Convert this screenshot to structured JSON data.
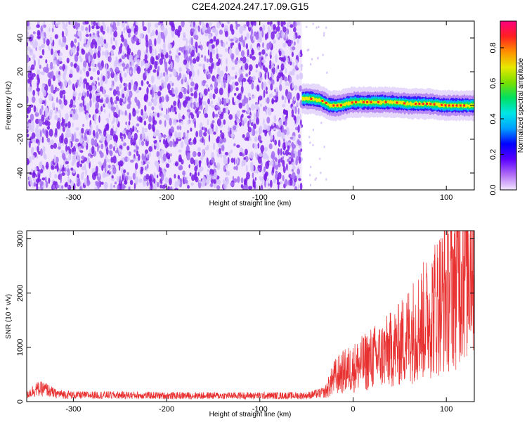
{
  "title": "C2E4.2024.247.17.09.G15",
  "colors": {
    "snr_line": "#e83030",
    "noise_dark": "#7a1fe6",
    "noise_light": "#d7c4fb",
    "frame": "#000000"
  },
  "chart_data": [
    {
      "type": "heatmap",
      "xlabel": "Height of straight line (km)",
      "ylabel": "Frequency (Hz)",
      "xlim": [
        -350,
        130
      ],
      "ylim": [
        -50,
        50
      ],
      "xticks": [
        -300,
        -200,
        -100,
        0,
        100
      ],
      "yticks": [
        -40,
        -20,
        0,
        20,
        40
      ],
      "noise_region_x": [
        -350,
        -55
      ],
      "signal_track": {
        "x": [
          -55,
          -45,
          -35,
          -25,
          -15,
          0,
          20,
          40,
          60,
          80,
          100,
          120,
          130
        ],
        "y": [
          4,
          4,
          3,
          0,
          0,
          2,
          2,
          2,
          1,
          1,
          0,
          0,
          0
        ]
      },
      "colorbar": {
        "label": "Normalized spectral amplitude",
        "ticks": [
          0.0,
          0.2,
          0.4,
          0.6,
          0.8
        ],
        "range": [
          0,
          0.95
        ],
        "colorscale": [
          "#f3e6ff",
          "#b06cf5",
          "#5a00ff",
          "#0000ff",
          "#00a0ff",
          "#00e6e6",
          "#00e060",
          "#7ae000",
          "#e8e800",
          "#ff9000",
          "#ff2020",
          "#ff0080"
        ]
      }
    },
    {
      "type": "line",
      "xlabel": "Height of straight line (km)",
      "ylabel": "SNR (10 * v/v)",
      "xlim": [
        -350,
        130
      ],
      "ylim": [
        0,
        3150
      ],
      "xticks": [
        -300,
        -200,
        -100,
        0,
        100
      ],
      "yticks": [
        0,
        1000,
        2000,
        3000
      ],
      "series": [
        {
          "x": [
            -350,
            -340,
            -330,
            -320,
            -300,
            -250,
            -200,
            -150,
            -100,
            -50,
            -30,
            -20,
            -10,
            0,
            10,
            20,
            30,
            40,
            50,
            60,
            70,
            80,
            90,
            100,
            110,
            120,
            130
          ],
          "y": [
            130,
            230,
            230,
            150,
            120,
            120,
            110,
            110,
            110,
            110,
            170,
            450,
            550,
            620,
            700,
            800,
            850,
            950,
            1050,
            1250,
            1400,
            1550,
            1800,
            2000,
            2300,
            2650,
            3000
          ]
        }
      ]
    }
  ]
}
